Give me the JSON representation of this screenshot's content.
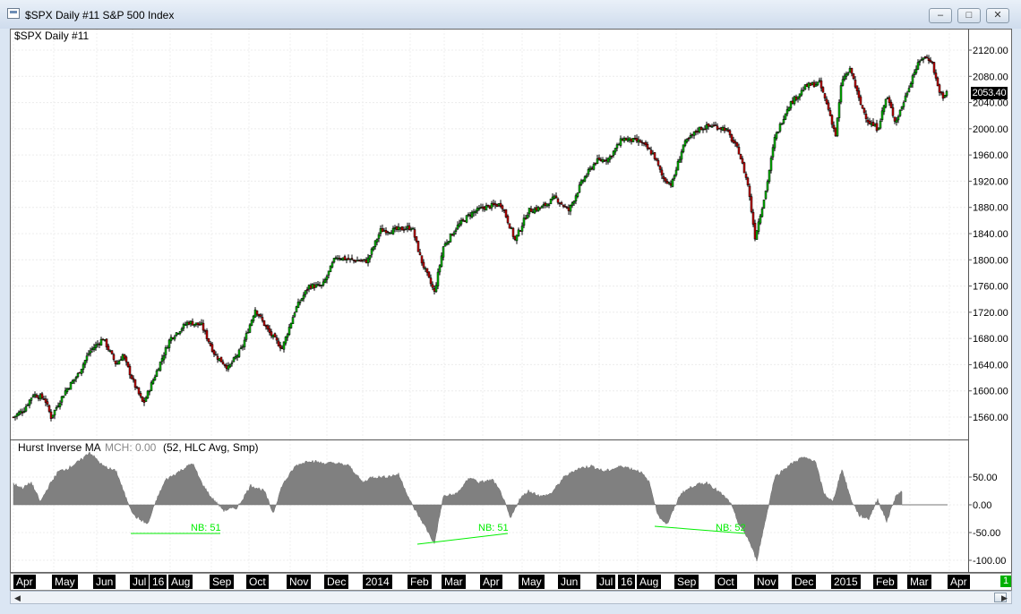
{
  "window": {
    "title": "$SPX  Daily  #11  S&P 500 Index",
    "buttons": [
      "minimize",
      "maximize",
      "close"
    ]
  },
  "price_pane": {
    "label": "$SPX  Daily  #11",
    "last_price": "2053.40",
    "y_ticks": [
      "2120.00",
      "2080.00",
      "2040.00",
      "2000.00",
      "1960.00",
      "1920.00",
      "1880.00",
      "1840.00",
      "1800.00",
      "1760.00",
      "1720.00",
      "1680.00",
      "1640.00",
      "1600.00",
      "1560.00"
    ]
  },
  "indicator_pane": {
    "name": "Hurst Inverse MA",
    "mch": "MCH: 0.00",
    "params": "(52, HLC Avg, Smp)",
    "y_ticks": [
      "50.00",
      "0.00",
      "-50.00",
      "-100.00"
    ],
    "nb_labels": [
      "NB: 51",
      "NB: 51",
      "NB: 52"
    ]
  },
  "x_axis": {
    "labels": [
      "Apr",
      "May",
      "Jun",
      "Jul",
      "16",
      "Aug",
      "Sep",
      "Oct",
      "Nov",
      "Dec",
      "2014",
      "Feb",
      "Mar",
      "Apr",
      "May",
      "Jun",
      "Jul",
      "16",
      "Aug",
      "Sep",
      "Oct",
      "Nov",
      "Dec",
      "2015",
      "Feb",
      "Mar",
      "Apr"
    ]
  },
  "status": {
    "badge": "1"
  },
  "colors": {
    "bull": "#00c000",
    "bear": "#cc0000",
    "indicator_fill": "#808080",
    "nb_line": "#00ee00"
  },
  "chart_data": [
    {
      "type": "candlestick",
      "title": "$SPX  Daily  #11",
      "ylim": [
        1530,
        2145
      ],
      "x": [
        "2013-04",
        "2013-05",
        "2013-06",
        "2013-07",
        "2013-08",
        "2013-09",
        "2013-10",
        "2013-11",
        "2013-12",
        "2014-01",
        "2014-02",
        "2014-03",
        "2014-04",
        "2014-05",
        "2014-06",
        "2014-07",
        "2014-08",
        "2014-09",
        "2014-10",
        "2014-11",
        "2014-12",
        "2015-01",
        "2015-02",
        "2015-03"
      ],
      "approx_close": [
        1555,
        1650,
        1620,
        1690,
        1640,
        1690,
        1755,
        1805,
        1845,
        1790,
        1860,
        1870,
        1880,
        1925,
        1960,
        1930,
        2000,
        1975,
        2015,
        2065,
        2060,
        1995,
        2105,
        2053.4
      ],
      "anchors": [
        [
          0,
          1560
        ],
        [
          12,
          1572
        ],
        [
          22,
          1595
        ],
        [
          35,
          1588
        ],
        [
          42,
          1560
        ],
        [
          58,
          1600
        ],
        [
          72,
          1625
        ],
        [
          85,
          1660
        ],
        [
          100,
          1680
        ],
        [
          115,
          1640
        ],
        [
          122,
          1655
        ],
        [
          135,
          1610
        ],
        [
          145,
          1580
        ],
        [
          160,
          1630
        ],
        [
          175,
          1680
        ],
        [
          195,
          1705
        ],
        [
          210,
          1700
        ],
        [
          225,
          1655
        ],
        [
          240,
          1635
        ],
        [
          255,
          1665
        ],
        [
          270,
          1725
        ],
        [
          285,
          1690
        ],
        [
          300,
          1665
        ],
        [
          315,
          1725
        ],
        [
          330,
          1760
        ],
        [
          345,
          1760
        ],
        [
          360,
          1805
        ],
        [
          375,
          1800
        ],
        [
          395,
          1798
        ],
        [
          410,
          1845
        ],
        [
          425,
          1845
        ],
        [
          445,
          1850
        ],
        [
          455,
          1800
        ],
        [
          470,
          1750
        ],
        [
          480,
          1820
        ],
        [
          495,
          1850
        ],
        [
          510,
          1870
        ],
        [
          525,
          1880
        ],
        [
          545,
          1885
        ],
        [
          560,
          1830
        ],
        [
          575,
          1875
        ],
        [
          590,
          1880
        ],
        [
          605,
          1895
        ],
        [
          620,
          1875
        ],
        [
          635,
          1920
        ],
        [
          650,
          1950
        ],
        [
          665,
          1955
        ],
        [
          680,
          1985
        ],
        [
          700,
          1980
        ],
        [
          715,
          1960
        ],
        [
          725,
          1925
        ],
        [
          735,
          1915
        ],
        [
          748,
          1975
        ],
        [
          765,
          2000
        ],
        [
          780,
          2005
        ],
        [
          795,
          2000
        ],
        [
          810,
          1965
        ],
        [
          820,
          1915
        ],
        [
          828,
          1835
        ],
        [
          840,
          1905
        ],
        [
          850,
          1985
        ],
        [
          865,
          2035
        ],
        [
          885,
          2065
        ],
        [
          900,
          2070
        ],
        [
          910,
          2030
        ],
        [
          918,
          1990
        ],
        [
          925,
          2075
        ],
        [
          935,
          2090
        ],
        [
          945,
          2040
        ],
        [
          955,
          2010
        ],
        [
          965,
          2000
        ],
        [
          975,
          2050
        ],
        [
          985,
          2010
        ],
        [
          995,
          2045
        ],
        [
          1005,
          2085
        ],
        [
          1015,
          2110
        ],
        [
          1025,
          2105
        ],
        [
          1032,
          2065
        ],
        [
          1038,
          2045
        ],
        [
          1043,
          2060
        ]
      ]
    },
    {
      "type": "area",
      "title": "Hurst Inverse MA",
      "ylim": [
        -110,
        80
      ],
      "anchors": [
        [
          0,
          38
        ],
        [
          10,
          30
        ],
        [
          20,
          40
        ],
        [
          30,
          5
        ],
        [
          40,
          35
        ],
        [
          50,
          60
        ],
        [
          60,
          65
        ],
        [
          75,
          80
        ],
        [
          85,
          95
        ],
        [
          100,
          70
        ],
        [
          115,
          60
        ],
        [
          125,
          15
        ],
        [
          135,
          -20
        ],
        [
          150,
          -35
        ],
        [
          160,
          10
        ],
        [
          170,
          45
        ],
        [
          185,
          60
        ],
        [
          200,
          75
        ],
        [
          210,
          40
        ],
        [
          220,
          15
        ],
        [
          235,
          -10
        ],
        [
          250,
          -5
        ],
        [
          265,
          35
        ],
        [
          280,
          25
        ],
        [
          290,
          -15
        ],
        [
          300,
          35
        ],
        [
          315,
          70
        ],
        [
          330,
          80
        ],
        [
          345,
          75
        ],
        [
          360,
          75
        ],
        [
          375,
          70
        ],
        [
          390,
          40
        ],
        [
          400,
          50
        ],
        [
          415,
          50
        ],
        [
          430,
          55
        ],
        [
          445,
          0
        ],
        [
          460,
          -40
        ],
        [
          470,
          -70
        ],
        [
          480,
          15
        ],
        [
          495,
          20
        ],
        [
          510,
          50
        ],
        [
          520,
          40
        ],
        [
          535,
          45
        ],
        [
          545,
          20
        ],
        [
          555,
          -25
        ],
        [
          565,
          10
        ],
        [
          575,
          25
        ],
        [
          590,
          15
        ],
        [
          600,
          20
        ],
        [
          615,
          50
        ],
        [
          630,
          65
        ],
        [
          645,
          70
        ],
        [
          660,
          60
        ],
        [
          680,
          70
        ],
        [
          700,
          60
        ],
        [
          710,
          40
        ],
        [
          720,
          -20
        ],
        [
          730,
          -35
        ],
        [
          745,
          20
        ],
        [
          760,
          35
        ],
        [
          775,
          40
        ],
        [
          790,
          20
        ],
        [
          800,
          5
        ],
        [
          810,
          -35
        ],
        [
          820,
          -60
        ],
        [
          830,
          -100
        ],
        [
          840,
          -25
        ],
        [
          850,
          50
        ],
        [
          865,
          70
        ],
        [
          880,
          85
        ],
        [
          895,
          80
        ],
        [
          905,
          20
        ],
        [
          915,
          5
        ],
        [
          925,
          65
        ],
        [
          935,
          10
        ],
        [
          945,
          -20
        ],
        [
          955,
          -25
        ],
        [
          965,
          10
        ],
        [
          975,
          -30
        ],
        [
          985,
          15
        ],
        [
          992,
          25
        ],
        [
          1000,
          0
        ],
        [
          1043,
          0
        ]
      ]
    }
  ]
}
